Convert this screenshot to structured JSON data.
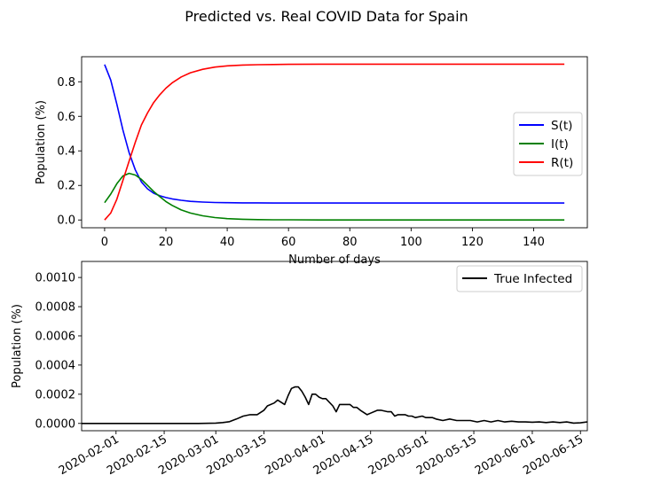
{
  "figure": {
    "title": "Predicted vs. Real COVID Data for Spain"
  },
  "chart_data": [
    {
      "type": "line",
      "xlabel": "Number of days",
      "ylabel": "Population (%)",
      "xlim": [
        -7.5,
        157.5
      ],
      "ylim": [
        -0.045,
        0.945
      ],
      "xticks": [
        0,
        20,
        40,
        60,
        80,
        100,
        120,
        140
      ],
      "xtick_labels": [
        "0",
        "20",
        "40",
        "60",
        "80",
        "100",
        "120",
        "140"
      ],
      "yticks": [
        0.0,
        0.2,
        0.4,
        0.6,
        0.8
      ],
      "ytick_labels": [
        "0.0",
        "0.2",
        "0.4",
        "0.6",
        "0.8"
      ],
      "grid": false,
      "legend": "center right",
      "x": [
        0,
        2,
        4,
        6,
        8,
        10,
        12,
        14,
        16,
        18,
        20,
        22,
        25,
        28,
        32,
        36,
        40,
        45,
        50,
        55,
        60,
        70,
        80,
        90,
        100,
        110,
        120,
        130,
        140,
        150
      ],
      "series": [
        {
          "name": "S(t)",
          "color": "#0000ff",
          "values": [
            0.9,
            0.81,
            0.67,
            0.52,
            0.39,
            0.29,
            0.22,
            0.18,
            0.155,
            0.14,
            0.13,
            0.122,
            0.114,
            0.108,
            0.104,
            0.101,
            0.1,
            0.099,
            0.099,
            0.098,
            0.098,
            0.098,
            0.098,
            0.098,
            0.098,
            0.098,
            0.098,
            0.098,
            0.098,
            0.098
          ]
        },
        {
          "name": "I(t)",
          "color": "#008000",
          "values": [
            0.1,
            0.15,
            0.21,
            0.255,
            0.27,
            0.26,
            0.235,
            0.2,
            0.165,
            0.135,
            0.107,
            0.085,
            0.058,
            0.04,
            0.024,
            0.014,
            0.008,
            0.004,
            0.002,
            0.001,
            0.001,
            0.0,
            0.0,
            0.0,
            0.0,
            0.0,
            0.0,
            0.0,
            0.0,
            0.0
          ]
        },
        {
          "name": "R(t)",
          "color": "#ff0000",
          "values": [
            0.0,
            0.04,
            0.12,
            0.23,
            0.34,
            0.45,
            0.55,
            0.62,
            0.68,
            0.725,
            0.763,
            0.793,
            0.828,
            0.852,
            0.872,
            0.885,
            0.892,
            0.897,
            0.899,
            0.9,
            0.901,
            0.902,
            0.902,
            0.902,
            0.902,
            0.902,
            0.902,
            0.902,
            0.902,
            0.902
          ]
        }
      ]
    },
    {
      "type": "line",
      "xlabel": "",
      "ylabel": "Population (%)",
      "xlim": [
        "2020-01-22",
        "2020-06-17"
      ],
      "ylim": [
        -5e-05,
        0.00111
      ],
      "xticks": [
        "2020-02-01",
        "2020-02-15",
        "2020-03-01",
        "2020-03-15",
        "2020-04-01",
        "2020-04-15",
        "2020-05-01",
        "2020-05-15",
        "2020-06-01",
        "2020-06-15"
      ],
      "xtick_labels": [
        "2020-02-01",
        "2020-02-15",
        "2020-03-01",
        "2020-03-15",
        "2020-04-01",
        "2020-04-15",
        "2020-05-01",
        "2020-05-15",
        "2020-06-01",
        "2020-06-15"
      ],
      "yticks": [
        0.0,
        0.0002,
        0.0004,
        0.0006,
        0.0008,
        0.001
      ],
      "ytick_labels": [
        "0.0000",
        "0.0002",
        "0.0004",
        "0.0006",
        "0.0008",
        "0.0010"
      ],
      "grid": false,
      "legend": "upper right",
      "series": [
        {
          "name": "True Infected",
          "color": "#000000",
          "x": [
            "2020-01-22",
            "2020-02-25",
            "2020-03-01",
            "2020-03-03",
            "2020-03-05",
            "2020-03-07",
            "2020-03-09",
            "2020-03-11",
            "2020-03-13",
            "2020-03-15",
            "2020-03-16",
            "2020-03-18",
            "2020-03-19",
            "2020-03-21",
            "2020-03-22",
            "2020-03-23",
            "2020-03-24",
            "2020-03-25",
            "2020-03-26",
            "2020-03-27",
            "2020-03-28",
            "2020-03-29",
            "2020-03-30",
            "2020-03-31",
            "2020-04-01",
            "2020-04-02",
            "2020-04-04",
            "2020-04-05",
            "2020-04-06",
            "2020-04-07",
            "2020-04-08",
            "2020-04-09",
            "2020-04-10",
            "2020-04-11",
            "2020-04-12",
            "2020-04-14",
            "2020-04-15",
            "2020-04-17",
            "2020-04-18",
            "2020-04-20",
            "2020-04-21",
            "2020-04-22",
            "2020-04-23",
            "2020-04-25",
            "2020-04-26",
            "2020-04-27",
            "2020-04-28",
            "2020-04-30",
            "2020-05-01",
            "2020-05-03",
            "2020-05-04",
            "2020-05-06",
            "2020-05-08",
            "2020-05-10",
            "2020-05-12",
            "2020-05-14",
            "2020-05-16",
            "2020-05-18",
            "2020-05-20",
            "2020-05-22",
            "2020-05-24",
            "2020-05-26",
            "2020-05-28",
            "2020-05-30",
            "2020-06-01",
            "2020-06-03",
            "2020-06-05",
            "2020-06-07",
            "2020-06-09",
            "2020-06-11",
            "2020-06-13",
            "2020-06-15",
            "2020-06-17"
          ],
          "values": [
            0.0,
            0.0,
            2e-06,
            6e-06,
            1.2e-05,
            3e-05,
            5e-05,
            6e-05,
            6e-05,
            9e-05,
            0.00012,
            0.00014,
            0.00016,
            0.00013,
            0.00019,
            0.00024,
            0.00025,
            0.00025,
            0.00022,
            0.00018,
            0.00013,
            0.0002,
            0.0002,
            0.00018,
            0.00017,
            0.00017,
            0.00012,
            8e-05,
            0.00013,
            0.00013,
            0.00013,
            0.00013,
            0.00011,
            0.00011,
            9e-05,
            6e-05,
            7e-05,
            9e-05,
            9e-05,
            8e-05,
            8e-05,
            5e-05,
            6e-05,
            6e-05,
            5e-05,
            5e-05,
            4e-05,
            5e-05,
            4e-05,
            4e-05,
            3e-05,
            2e-05,
            3e-05,
            2e-05,
            2e-05,
            2e-05,
            1e-05,
            2e-05,
            1e-05,
            2e-05,
            1e-05,
            1.5e-05,
            1e-05,
            1e-05,
            8e-06,
            1e-05,
            6e-06,
            1e-05,
            6e-06,
            1e-05,
            2e-06,
            4e-06,
            1e-05
          ]
        }
      ]
    }
  ]
}
